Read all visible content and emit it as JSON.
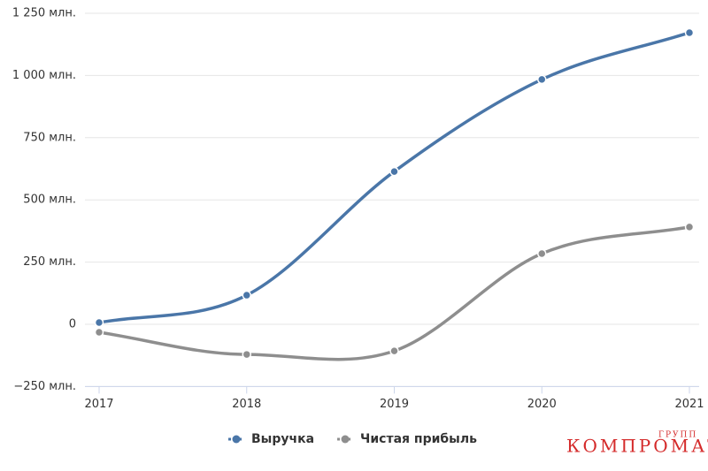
{
  "chart_data": {
    "type": "line",
    "categories": [
      "2017",
      "2018",
      "2019",
      "2020",
      "2021"
    ],
    "series": [
      {
        "name": "Выручка",
        "color": "#4a76a8",
        "values": [
          7,
          117,
          614,
          984,
          1172
        ]
      },
      {
        "name": "Чистая прибыль",
        "color": "#8e8e8e",
        "values": [
          -32,
          -121,
          -107,
          284,
          391
        ]
      }
    ],
    "ylim": [
      -250,
      1250
    ],
    "yticks": [
      {
        "value": -250,
        "label": "−250 млн."
      },
      0,
      {
        "value": 250,
        "label": "250 млн."
      },
      {
        "value": 500,
        "label": "500 млн."
      },
      {
        "value": 750,
        "label": "750 млн."
      },
      {
        "value": 1000,
        "label": "1 000 млн."
      },
      {
        "value": 1250,
        "label": "1 250 млн."
      }
    ],
    "grid": true,
    "legend": "bottom",
    "watermark": {
      "text": "КОМПРОМАТ",
      "subtext": "ГРУПП"
    }
  }
}
